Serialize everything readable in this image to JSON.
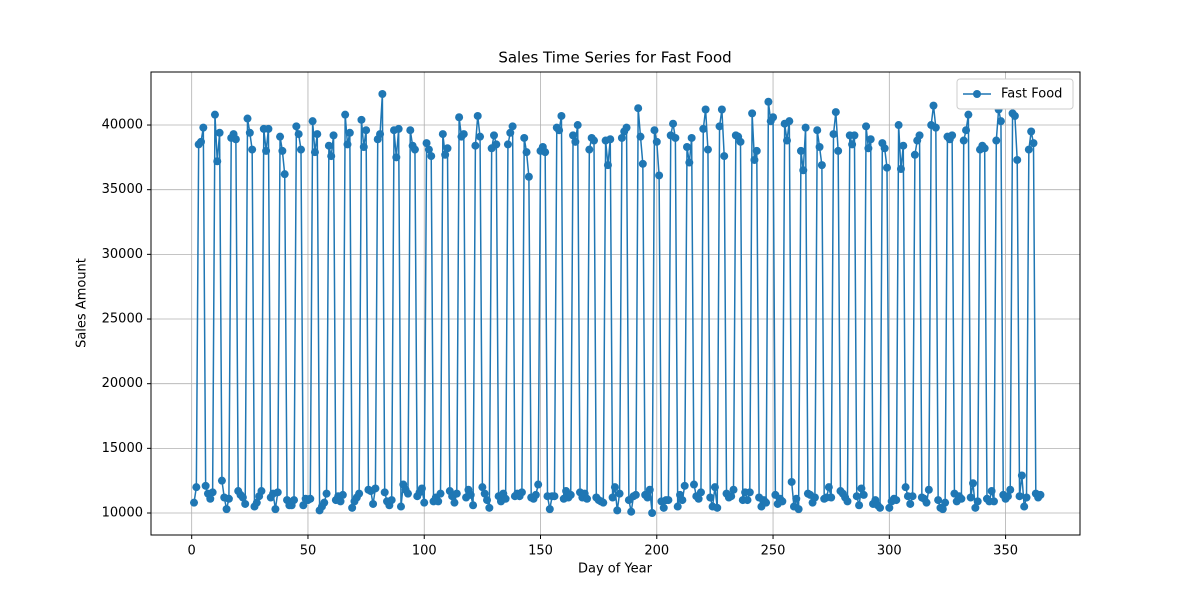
{
  "chart_data": {
    "type": "line",
    "title": "Sales Time Series for Fast Food",
    "x_label": "Day of Year",
    "y_label": "Sales Amount",
    "x": [
      1,
      2,
      3,
      4,
      5,
      6,
      7,
      8,
      9,
      10,
      11,
      12,
      13,
      14,
      15,
      16,
      17,
      18,
      19,
      20,
      21,
      22,
      23,
      24,
      25,
      26,
      27,
      28,
      29,
      30,
      31,
      32,
      33,
      34,
      35,
      36,
      37,
      38,
      39,
      40,
      41,
      42,
      43,
      44,
      45,
      46,
      47,
      48,
      49,
      50,
      51,
      52,
      53,
      54,
      55,
      56,
      57,
      58,
      59,
      60,
      61,
      62,
      63,
      64,
      65,
      66,
      67,
      68,
      69,
      70,
      71,
      72,
      73,
      74,
      75,
      76,
      77,
      78,
      79,
      80,
      81,
      82,
      83,
      84,
      85,
      86,
      87,
      88,
      89,
      90,
      91,
      92,
      93,
      94,
      95,
      96,
      97,
      98,
      99,
      100,
      101,
      102,
      103,
      104,
      105,
      106,
      107,
      108,
      109,
      110,
      111,
      112,
      113,
      114,
      115,
      116,
      117,
      118,
      119,
      120,
      121,
      122,
      123,
      124,
      125,
      126,
      127,
      128,
      129,
      130,
      131,
      132,
      133,
      134,
      135,
      136,
      137,
      138,
      139,
      140,
      141,
      142,
      143,
      144,
      145,
      146,
      147,
      148,
      149,
      150,
      151,
      152,
      153,
      154,
      155,
      156,
      157,
      158,
      159,
      160,
      161,
      162,
      163,
      164,
      165,
      166,
      167,
      168,
      169,
      170,
      171,
      172,
      173,
      174,
      175,
      176,
      177,
      178,
      179,
      180,
      181,
      182,
      183,
      184,
      185,
      186,
      187,
      188,
      189,
      190,
      191,
      192,
      193,
      194,
      195,
      196,
      197,
      198,
      199,
      200,
      201,
      202,
      203,
      204,
      205,
      206,
      207,
      208,
      209,
      210,
      211,
      212,
      213,
      214,
      215,
      216,
      217,
      218,
      219,
      220,
      221,
      222,
      223,
      224,
      225,
      226,
      227,
      228,
      229,
      230,
      231,
      232,
      233,
      234,
      235,
      236,
      237,
      238,
      239,
      240,
      241,
      242,
      243,
      244,
      245,
      246,
      247,
      248,
      249,
      250,
      251,
      252,
      253,
      254,
      255,
      256,
      257,
      258,
      259,
      260,
      261,
      262,
      263,
      264,
      265,
      266,
      267,
      268,
      269,
      270,
      271,
      272,
      273,
      274,
      275,
      276,
      277,
      278,
      279,
      280,
      281,
      282,
      283,
      284,
      285,
      286,
      287,
      288,
      289,
      290,
      291,
      292,
      293,
      294,
      295,
      296,
      297,
      298,
      299,
      300,
      301,
      302,
      303,
      304,
      305,
      306,
      307,
      308,
      309,
      310,
      311,
      312,
      313,
      314,
      315,
      316,
      317,
      318,
      319,
      320,
      321,
      322,
      323,
      324,
      325,
      326,
      327,
      328,
      329,
      330,
      331,
      332,
      333,
      334,
      335,
      336,
      337,
      338,
      339,
      340,
      341,
      342,
      343,
      344,
      345,
      346,
      347,
      348,
      349,
      350,
      351,
      352,
      353,
      354,
      355,
      356,
      357,
      358,
      359,
      360,
      361,
      362,
      363,
      364,
      365
    ],
    "series": [
      {
        "name": "Fast Food",
        "color": "#1f77b4",
        "values": [
          10800,
          12000,
          38500,
          38700,
          39800,
          12100,
          11500,
          11100,
          11600,
          40800,
          37200,
          39400,
          12500,
          11200,
          10300,
          11100,
          39000,
          39300,
          38900,
          11700,
          11400,
          11200,
          10700,
          40500,
          39400,
          38100,
          10500,
          10800,
          11300,
          11700,
          39700,
          38000,
          39700,
          11200,
          11500,
          10300,
          11600,
          39100,
          38000,
          36200,
          11000,
          10600,
          10600,
          11000,
          39900,
          39300,
          38100,
          10600,
          11100,
          11000,
          11100,
          40300,
          37900,
          39300,
          10200,
          10500,
          10800,
          11500,
          38400,
          37600,
          39200,
          11000,
          11300,
          10900,
          11400,
          40800,
          38500,
          39400,
          10400,
          10900,
          11200,
          11500,
          40400,
          38300,
          39600,
          11800,
          11700,
          10700,
          11900,
          38900,
          39300,
          42400,
          11600,
          10900,
          10600,
          11000,
          39600,
          37500,
          39700,
          10500,
          12200,
          11800,
          11500,
          39600,
          38400,
          38100,
          11300,
          11600,
          11900,
          10800,
          38600,
          38100,
          37600,
          10900,
          11200,
          10900,
          11500,
          39300,
          37700,
          38200,
          11700,
          11300,
          10800,
          11500,
          40600,
          39100,
          39300,
          11200,
          11800,
          11400,
          10600,
          38400,
          40700,
          39100,
          12000,
          11500,
          11000,
          10400,
          38200,
          39200,
          38500,
          11300,
          10900,
          11500,
          11100,
          38500,
          39400,
          39900,
          11300,
          11500,
          11300,
          11600,
          39000,
          37900,
          36000,
          11200,
          11100,
          11400,
          12200,
          38000,
          38300,
          37900,
          11300,
          10300,
          11300,
          11300,
          39800,
          39600,
          40700,
          11100,
          11700,
          11200,
          11400,
          39200,
          38700,
          40000,
          11600,
          11200,
          11500,
          11100,
          38100,
          39000,
          38800,
          11200,
          11000,
          10900,
          10800,
          38800,
          36900,
          38900,
          11200,
          12000,
          10200,
          11500,
          39000,
          39500,
          39800,
          11000,
          10100,
          11300,
          11400,
          41300,
          39100,
          37000,
          11400,
          11200,
          11800,
          10000,
          39600,
          38700,
          36100,
          10900,
          10400,
          11000,
          11000,
          39200,
          40100,
          39000,
          10500,
          11400,
          11000,
          12100,
          38300,
          37100,
          39000,
          12200,
          11300,
          11100,
          11600,
          39700,
          41200,
          38100,
          11200,
          10500,
          12000,
          10400,
          39900,
          41200,
          37600,
          11500,
          11200,
          11300,
          11800,
          39200,
          39100,
          38700,
          11000,
          11600,
          11000,
          11600,
          40900,
          37300,
          38000,
          11200,
          10500,
          11000,
          10800,
          41800,
          40300,
          40600,
          11400,
          10700,
          11100,
          10900,
          40100,
          38800,
          40300,
          12400,
          10500,
          11100,
          10300,
          38000,
          36500,
          39800,
          11500,
          11400,
          10800,
          11200,
          39600,
          38300,
          36900,
          11100,
          11200,
          12000,
          11200,
          39300,
          41000,
          38000,
          11700,
          11500,
          11200,
          10900,
          39200,
          38500,
          39200,
          11300,
          10600,
          11900,
          11400,
          39900,
          38200,
          38900,
          10700,
          11000,
          10600,
          10400,
          38600,
          38200,
          36700,
          10400,
          10900,
          11100,
          11000,
          40000,
          36600,
          38400,
          12000,
          11300,
          10700,
          11300,
          37700,
          38800,
          39200,
          11200,
          11100,
          10800,
          11800,
          40000,
          41500,
          39800,
          11000,
          10400,
          10300,
          10800,
          39100,
          38900,
          39200,
          11500,
          10900,
          11300,
          11100,
          38800,
          39600,
          40800,
          11200,
          12300,
          10400,
          10900,
          38100,
          38400,
          38200,
          11100,
          10900,
          11700,
          10900,
          38800,
          41200,
          40300,
          11400,
          11100,
          11300,
          11800,
          40900,
          40700,
          37300,
          11300,
          12900,
          10500,
          11200,
          38100,
          39500,
          38600,
          11500,
          11200,
          11400
        ]
      }
    ],
    "xlim": [
      -17.5,
      382
    ],
    "ylim": [
      8300,
      44100
    ],
    "xticks": [
      0,
      50,
      100,
      150,
      200,
      250,
      300,
      350
    ],
    "yticks": [
      10000,
      15000,
      20000,
      25000,
      30000,
      35000,
      40000
    ],
    "grid": true,
    "legend": "upper right"
  }
}
